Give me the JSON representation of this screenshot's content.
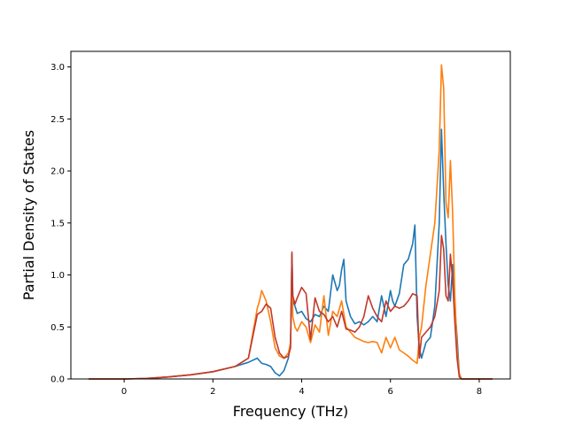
{
  "chart_data": {
    "type": "line",
    "xlabel": "Frequency (THz)",
    "ylabel": "Partial Density of States",
    "xlim": [
      -1.2,
      8.7
    ],
    "ylim": [
      0,
      3.15
    ],
    "xticks": [
      0,
      2,
      4,
      6,
      8
    ],
    "xtick_labels": [
      "0",
      "2",
      "4",
      "6",
      "8"
    ],
    "yticks": [
      0,
      0.5,
      1.0,
      1.5,
      2.0,
      2.5,
      3.0
    ],
    "ytick_labels": [
      "0.0",
      "0.5",
      "1.0",
      "1.5",
      "2.0",
      "2.5",
      "3.0"
    ],
    "grid": false,
    "series": [
      {
        "color": "#1f77b4",
        "x": [
          -0.8,
          0,
          0.5,
          1.0,
          1.5,
          2.0,
          2.5,
          2.8,
          3.0,
          3.1,
          3.2,
          3.3,
          3.4,
          3.5,
          3.6,
          3.7,
          3.75,
          3.78,
          3.8,
          3.85,
          3.9,
          4.0,
          4.1,
          4.2,
          4.3,
          4.4,
          4.5,
          4.6,
          4.7,
          4.8,
          4.85,
          4.9,
          4.95,
          5.0,
          5.1,
          5.2,
          5.3,
          5.4,
          5.5,
          5.6,
          5.7,
          5.8,
          5.9,
          6.0,
          6.05,
          6.1,
          6.2,
          6.3,
          6.4,
          6.5,
          6.55,
          6.6,
          6.65,
          6.7,
          6.8,
          6.9,
          7.0,
          7.1,
          7.15,
          7.2,
          7.25,
          7.3,
          7.35,
          7.4,
          7.45,
          7.5,
          7.55,
          7.6,
          8.3
        ],
        "y": [
          0,
          0,
          0.005,
          0.02,
          0.04,
          0.07,
          0.12,
          0.16,
          0.2,
          0.15,
          0.14,
          0.12,
          0.06,
          0.03,
          0.08,
          0.2,
          0.35,
          1.2,
          0.75,
          0.7,
          0.63,
          0.65,
          0.58,
          0.55,
          0.62,
          0.6,
          0.7,
          0.65,
          1.0,
          0.85,
          0.9,
          1.05,
          1.15,
          0.75,
          0.6,
          0.53,
          0.55,
          0.52,
          0.55,
          0.6,
          0.55,
          0.8,
          0.6,
          0.85,
          0.75,
          0.7,
          0.82,
          1.1,
          1.15,
          1.3,
          1.48,
          0.6,
          0.3,
          0.2,
          0.35,
          0.4,
          0.7,
          1.5,
          2.4,
          1.8,
          1.3,
          0.9,
          0.75,
          1.1,
          0.7,
          0.4,
          0.05,
          0,
          0
        ]
      },
      {
        "color": "#ff7f0e",
        "x": [
          -0.8,
          0,
          0.5,
          1.0,
          1.5,
          2.0,
          2.5,
          2.8,
          3.0,
          3.05,
          3.1,
          3.2,
          3.3,
          3.4,
          3.5,
          3.6,
          3.7,
          3.75,
          3.78,
          3.8,
          3.85,
          3.9,
          4.0,
          4.1,
          4.2,
          4.3,
          4.4,
          4.5,
          4.6,
          4.7,
          4.8,
          4.9,
          5.0,
          5.1,
          5.2,
          5.3,
          5.4,
          5.5,
          5.6,
          5.7,
          5.8,
          5.9,
          6.0,
          6.1,
          6.2,
          6.3,
          6.4,
          6.5,
          6.6,
          6.65,
          6.7,
          6.8,
          6.9,
          7.0,
          7.1,
          7.15,
          7.2,
          7.25,
          7.3,
          7.35,
          7.4,
          7.45,
          7.5,
          7.55,
          7.6,
          8.3
        ],
        "y": [
          0,
          0,
          0.005,
          0.02,
          0.04,
          0.07,
          0.12,
          0.2,
          0.68,
          0.75,
          0.85,
          0.75,
          0.55,
          0.3,
          0.22,
          0.2,
          0.25,
          0.35,
          1.1,
          0.6,
          0.5,
          0.46,
          0.55,
          0.5,
          0.35,
          0.52,
          0.45,
          0.8,
          0.42,
          0.65,
          0.6,
          0.75,
          0.5,
          0.45,
          0.4,
          0.38,
          0.36,
          0.35,
          0.36,
          0.35,
          0.25,
          0.4,
          0.3,
          0.4,
          0.28,
          0.25,
          0.22,
          0.18,
          0.15,
          0.4,
          0.5,
          0.9,
          1.2,
          1.5,
          2.2,
          3.02,
          2.8,
          1.7,
          1.55,
          2.1,
          1.6,
          0.8,
          0.3,
          0.05,
          0,
          0
        ]
      },
      {
        "color": "#c0392b",
        "x": [
          -0.8,
          0,
          0.5,
          1.0,
          1.5,
          2.0,
          2.5,
          2.8,
          3.0,
          3.1,
          3.2,
          3.3,
          3.4,
          3.5,
          3.6,
          3.7,
          3.75,
          3.78,
          3.8,
          3.85,
          3.9,
          4.0,
          4.1,
          4.2,
          4.3,
          4.4,
          4.5,
          4.6,
          4.7,
          4.8,
          4.9,
          5.0,
          5.1,
          5.2,
          5.3,
          5.4,
          5.5,
          5.6,
          5.7,
          5.8,
          5.9,
          6.0,
          6.1,
          6.2,
          6.3,
          6.4,
          6.5,
          6.6,
          6.65,
          6.7,
          6.8,
          6.9,
          7.0,
          7.1,
          7.15,
          7.2,
          7.25,
          7.3,
          7.35,
          7.4,
          7.45,
          7.5,
          7.55,
          7.6,
          8.3
        ],
        "y": [
          0,
          0,
          0.005,
          0.02,
          0.04,
          0.07,
          0.12,
          0.2,
          0.62,
          0.65,
          0.72,
          0.68,
          0.4,
          0.25,
          0.2,
          0.22,
          0.3,
          1.22,
          0.8,
          0.72,
          0.78,
          0.88,
          0.82,
          0.38,
          0.78,
          0.65,
          0.62,
          0.55,
          0.6,
          0.5,
          0.65,
          0.48,
          0.47,
          0.45,
          0.5,
          0.6,
          0.8,
          0.68,
          0.6,
          0.55,
          0.75,
          0.65,
          0.7,
          0.68,
          0.7,
          0.75,
          0.82,
          0.8,
          0.2,
          0.4,
          0.45,
          0.5,
          0.6,
          0.85,
          1.38,
          1.25,
          0.8,
          0.75,
          1.2,
          0.95,
          0.55,
          0.2,
          0.02,
          0,
          0
        ]
      }
    ]
  }
}
